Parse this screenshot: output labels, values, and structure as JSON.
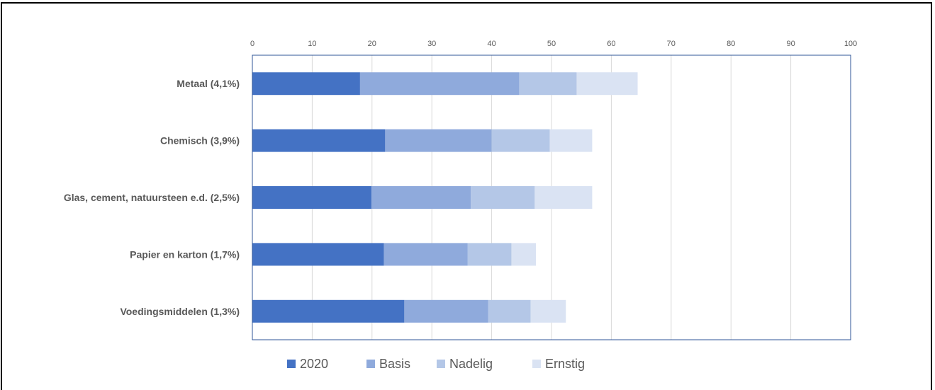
{
  "chart_data": {
    "type": "bar",
    "orientation": "horizontal",
    "stacked": true,
    "title": "",
    "xlabel": "",
    "ylabel": "",
    "xlim": [
      0,
      100
    ],
    "x_ticks": [
      0,
      10,
      20,
      30,
      40,
      50,
      60,
      70,
      80,
      90,
      100
    ],
    "x_axis_position": "top",
    "grid": true,
    "legend_position": "bottom",
    "categories": [
      "Metaal (4,1%)",
      "Chemisch (3,9%)",
      "Glas, cement, natuursteen e.d. (2,5%)",
      "Papier en karton (1,7%)",
      "Voedingsmiddelen (1,3%)"
    ],
    "series": [
      {
        "name": "2020",
        "color": "#4472c4",
        "values": [
          18.0,
          22.2,
          19.9,
          22.0,
          25.4
        ]
      },
      {
        "name": "Basis",
        "color": "#8faadc",
        "values": [
          26.6,
          17.8,
          16.6,
          14.0,
          14.0
        ]
      },
      {
        "name": "Nadelig",
        "color": "#b4c7e7",
        "values": [
          9.6,
          9.7,
          10.7,
          7.3,
          7.1
        ]
      },
      {
        "name": "Ernstig",
        "color": "#dae3f3",
        "values": [
          10.2,
          7.1,
          9.6,
          4.1,
          5.9
        ]
      }
    ]
  }
}
